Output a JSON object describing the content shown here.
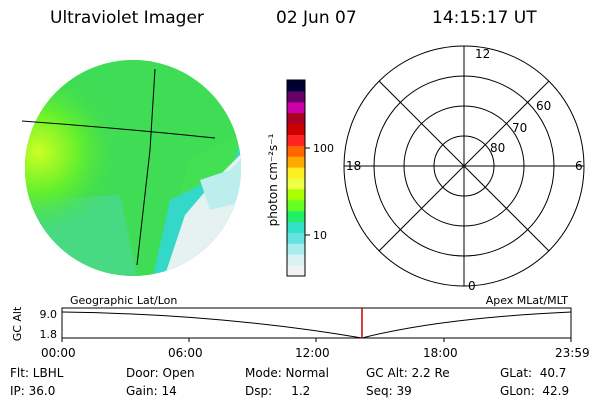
{
  "header": {
    "title": "Ultraviolet Imager",
    "date": "02 Jun 07",
    "time": "14:15:17 UT"
  },
  "colorbar": {
    "label": "photon cm⁻²s⁻¹",
    "tick_100": "100",
    "tick_10": "10",
    "colors": [
      "#f2f2f2",
      "#d9f2f2",
      "#a8ecec",
      "#66e0e0",
      "#33e0c8",
      "#22ee66",
      "#66ff22",
      "#aaff00",
      "#eeff44",
      "#ffee22",
      "#ffaa00",
      "#ff6600",
      "#ff2222",
      "#cc0000",
      "#aa0022",
      "#cc00aa",
      "#660066",
      "#000033"
    ]
  },
  "polar": {
    "label_top": "12",
    "label_bottom": "0",
    "label_left": "18",
    "label_right": "6",
    "label_60": "60",
    "label_70": "70",
    "label_80": "80"
  },
  "timeline": {
    "left_label": "Geographic Lat/Lon",
    "right_label": "Apex MLat/MLT",
    "y_axis_label": "GC Alt",
    "y_top": "9.0",
    "y_bottom": "1.8",
    "ticks": [
      "00:00",
      "06:00",
      "12:00",
      "18:00",
      "23:59"
    ],
    "marker_color": "#cc0000"
  },
  "info": {
    "flt": "Flt: LBHL",
    "ip": "IP: 36.0",
    "door": "Door: Open",
    "gain": "Gain: 14",
    "mode": "Mode: Normal",
    "dsp": "Dsp:     1.2",
    "gcalt": "GC Alt: 2.2 Re",
    "seq": "Seq: 39",
    "glat": "GLat:  40.7",
    "glon": "GLon:  42.9"
  }
}
